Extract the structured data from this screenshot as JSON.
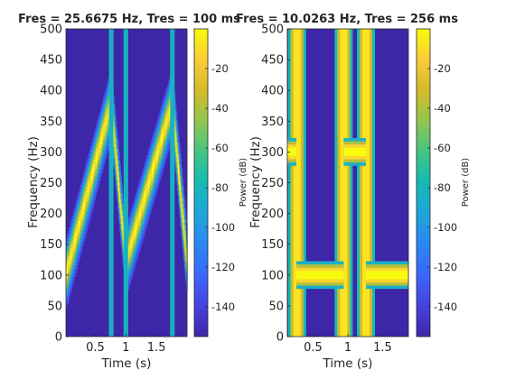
{
  "figure": {
    "background": "#ffffff",
    "axis_color": "#262626"
  },
  "chart_data": [
    {
      "type": "heatmap",
      "title": "Fres = 25.6675 Hz, Tres = 100 ms",
      "xlabel": "Time (s)",
      "ylabel": "Frequency (Hz)",
      "xlim": [
        0.02,
        2.0
      ],
      "ylim": [
        0,
        500
      ],
      "xticks": [
        0.5,
        1,
        1.5
      ],
      "xtick_labels": [
        "0.5",
        "1",
        "1.5"
      ],
      "yticks": [
        0,
        50,
        100,
        150,
        200,
        250,
        300,
        350,
        400,
        450,
        500
      ],
      "ytick_labels": [
        "0",
        "50",
        "100",
        "150",
        "200",
        "250",
        "300",
        "350",
        "400",
        "450",
        "500"
      ],
      "colorbar": {
        "label": "Power (dB)",
        "range": [
          -155,
          0
        ],
        "ticks": [
          -140,
          -120,
          -100,
          -80,
          -60,
          -40,
          -20
        ],
        "tick_labels": [
          "-140",
          "-120",
          "-100",
          "-80",
          "-60",
          "-40",
          "-20"
        ]
      },
      "signal": {
        "description": "sawtooth chirp",
        "segments": [
          {
            "t": [
              0.02,
              0.76
            ],
            "f": [
              100,
              380
            ]
          },
          {
            "t": [
              0.76,
              1.0
            ],
            "f": [
              380,
              120
            ]
          },
          {
            "t": [
              1.0,
              1.76
            ],
            "f": [
              120,
              380
            ]
          },
          {
            "t": [
              1.76,
              2.0
            ],
            "f": [
              380,
              120
            ]
          }
        ],
        "ridge_width_hz": 70,
        "vertical_lines_s": [
          0.76,
          1.0,
          1.76
        ]
      }
    },
    {
      "type": "heatmap",
      "title": "Fres = 10.0263 Hz, Tres = 256 ms",
      "xlabel": "Time (s)",
      "ylabel": "Frequency (Hz)",
      "xlim": [
        0.13,
        1.87
      ],
      "ylim": [
        0,
        500
      ],
      "xticks": [
        0.5,
        1,
        1.5
      ],
      "xtick_labels": [
        "0.5",
        "1",
        "1.5"
      ],
      "yticks": [
        0,
        50,
        100,
        150,
        200,
        250,
        300,
        350,
        400,
        450,
        500
      ],
      "ytick_labels": [
        "0",
        "50",
        "100",
        "150",
        "200",
        "250",
        "300",
        "350",
        "400",
        "450",
        "500"
      ],
      "colorbar": {
        "label": "Power (dB)",
        "range": [
          -155,
          0
        ],
        "ticks": [
          -140,
          -120,
          -100,
          -80,
          -60,
          -40,
          -20
        ],
        "tick_labels": [
          "-140",
          "-120",
          "-100",
          "-80",
          "-60",
          "-40",
          "-20"
        ]
      },
      "signal": {
        "description": "tone switching between 300 Hz and 100 Hz",
        "tones": [
          {
            "t": [
              0.13,
              0.26
            ],
            "f": 300
          },
          {
            "t": [
              0.26,
              0.94
            ],
            "f": 100
          },
          {
            "t": [
              0.94,
              1.26
            ],
            "f": 300
          },
          {
            "t": [
              1.26,
              1.87
            ],
            "f": 100
          }
        ],
        "ridge_width_hz": 30,
        "vertical_bands_s": [
          0.27,
          0.94,
          1.26
        ]
      }
    }
  ]
}
